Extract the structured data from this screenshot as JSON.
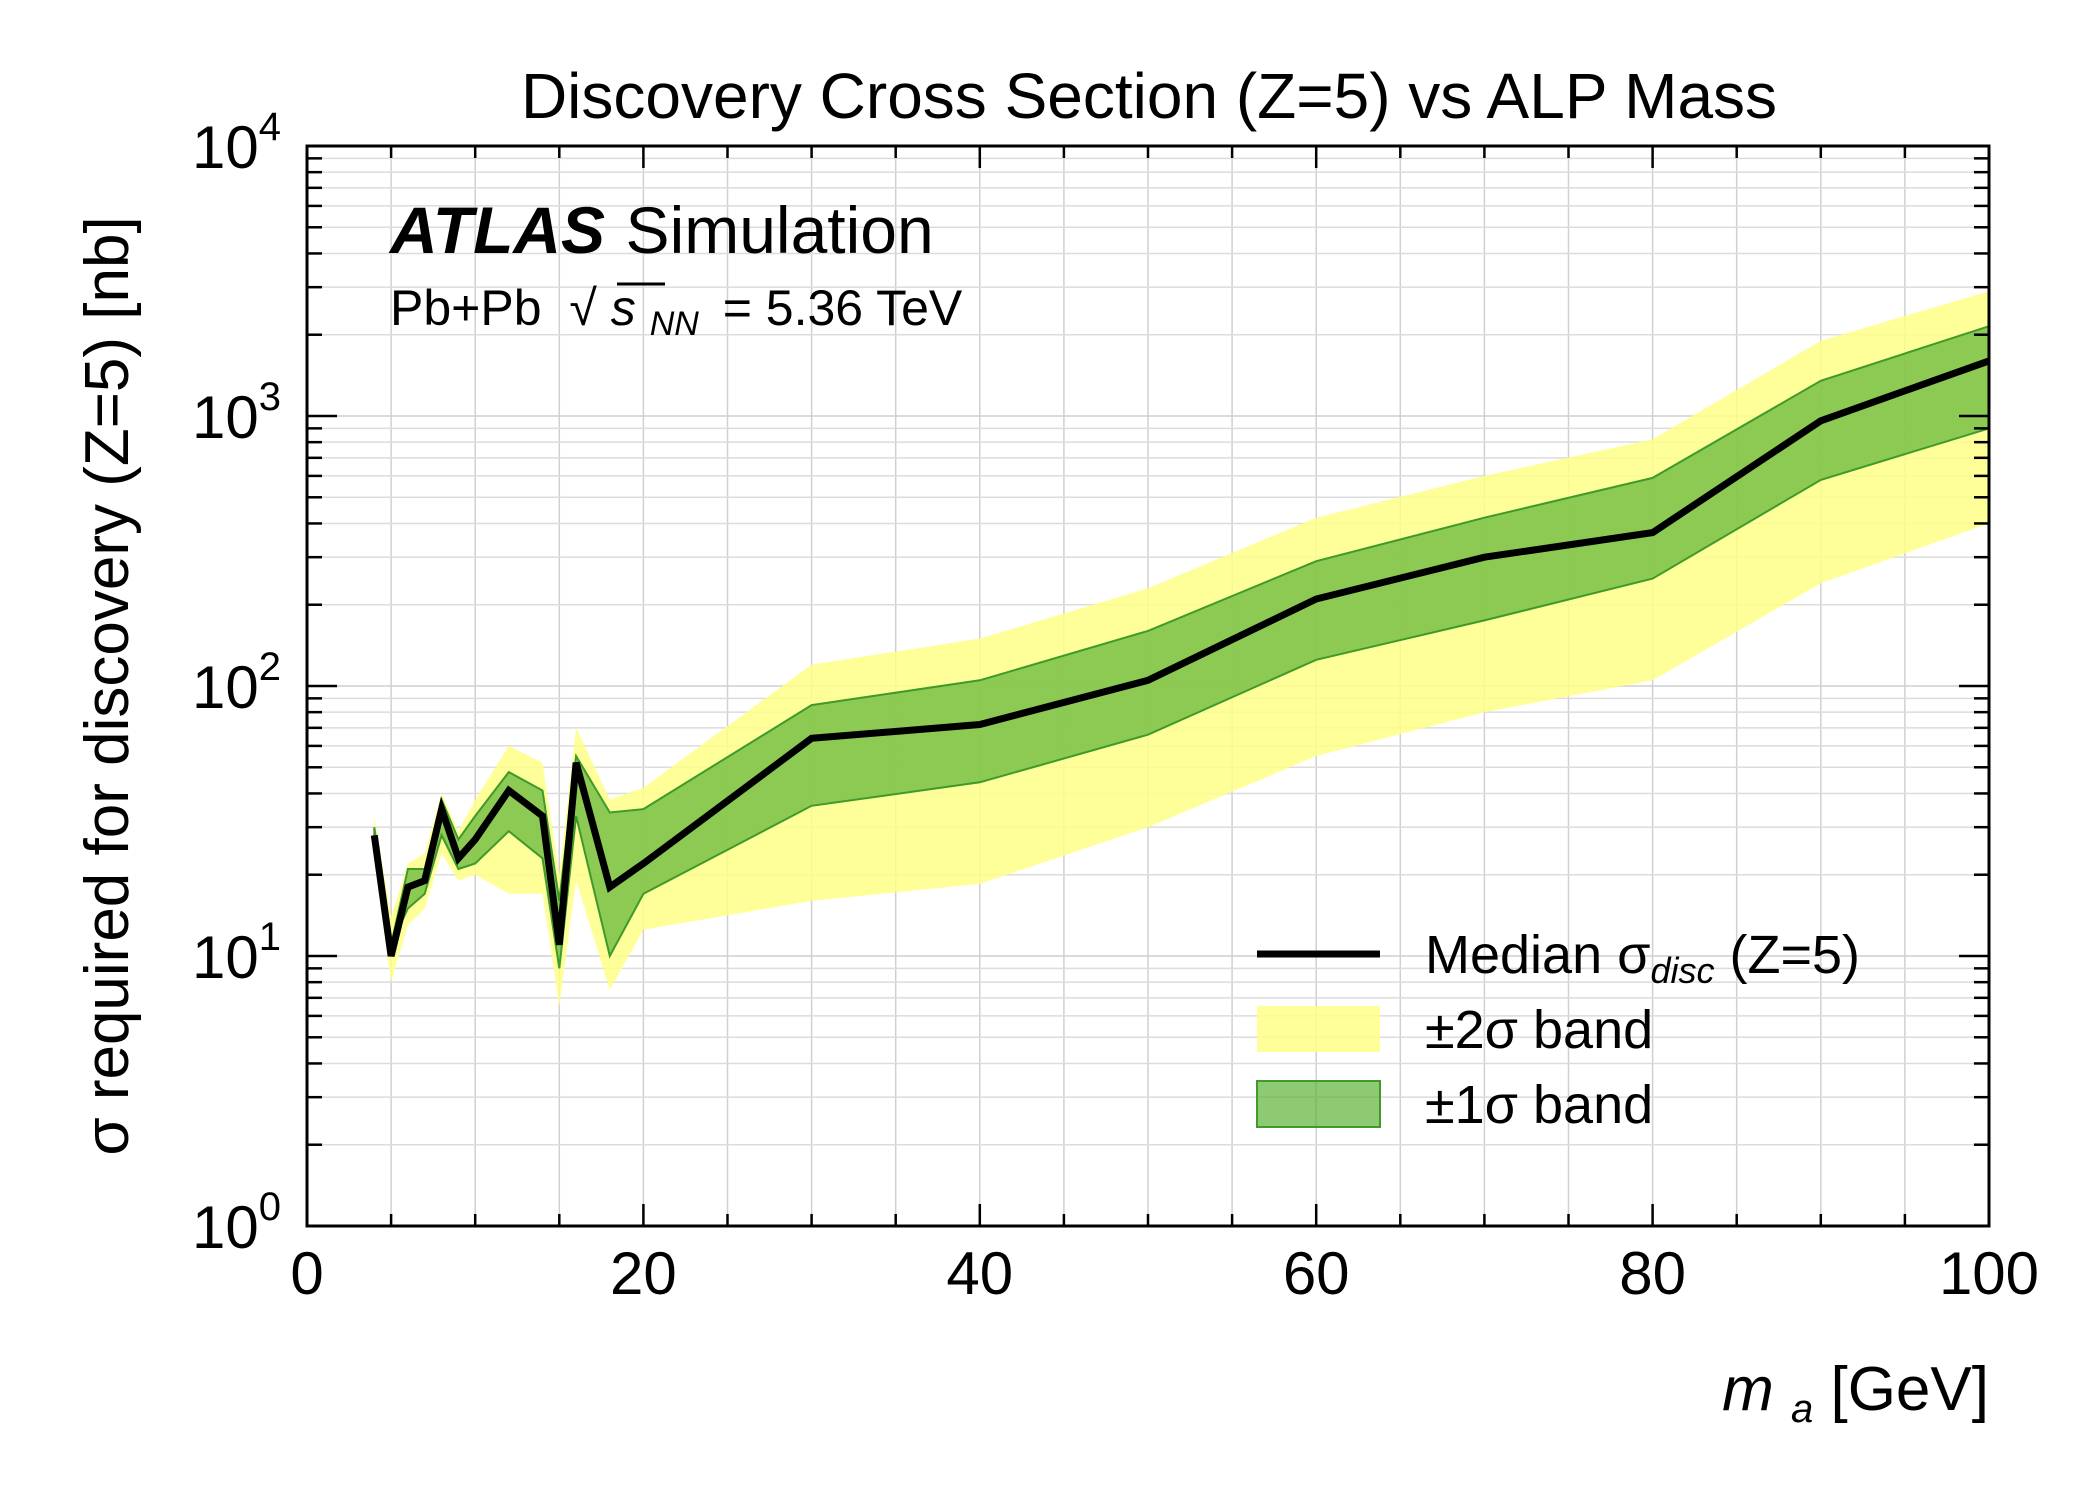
{
  "chart_data": {
    "type": "line",
    "title": "Discovery Cross Section (Z=5) vs ALP Mass",
    "xlabel": {
      "main": "m",
      "sub": "a",
      "unit": " [GeV]"
    },
    "ylabel": "σ required for discovery (Z=5) [nb]",
    "yscale": "log",
    "xlim": [
      0,
      100
    ],
    "ylim": [
      1,
      10000
    ],
    "grid": true,
    "legend_position": "bottom-right",
    "xticks": [
      "0",
      "20",
      "40",
      "60",
      "80",
      "100"
    ],
    "yticks": [
      {
        "value": 1,
        "base": "10",
        "exp": "0"
      },
      {
        "value": 10,
        "base": "10",
        "exp": "1"
      },
      {
        "value": 100,
        "base": "10",
        "exp": "2"
      },
      {
        "value": 1000,
        "base": "10",
        "exp": "3"
      },
      {
        "value": 10000,
        "base": "10",
        "exp": "4"
      }
    ],
    "experiment": {
      "name": "ATLAS",
      "tag": "Simulation"
    },
    "energy_label": {
      "system": "Pb+Pb",
      "sqrt_symbol": "√",
      "var": "s",
      "sub": "NN",
      "value": "= 5.36 TeV"
    },
    "x": [
      4,
      5,
      6,
      7,
      8,
      9,
      10,
      12,
      14,
      15,
      16,
      18,
      20,
      30,
      40,
      50,
      60,
      70,
      80,
      90,
      100
    ],
    "series": [
      {
        "name": "Median σ_disc (Z=5)",
        "role": "median",
        "color": "#000000",
        "values": [
          28,
          10,
          18,
          19,
          35,
          23,
          27,
          41,
          33,
          11,
          52,
          18,
          22,
          64,
          72,
          105,
          210,
          300,
          370,
          960,
          1600
        ]
      },
      {
        "name": "±1σ band",
        "role": "band1",
        "color": "#5cb335",
        "lower": [
          25,
          11,
          15,
          17,
          28,
          21,
          22,
          29,
          23,
          9,
          33,
          10,
          17,
          36,
          44,
          66,
          125,
          175,
          250,
          580,
          900
        ],
        "upper": [
          30,
          11,
          21,
          21,
          38,
          27,
          33,
          48,
          41,
          16,
          55,
          34,
          35,
          85,
          105,
          160,
          290,
          420,
          590,
          1350,
          2150
        ]
      },
      {
        "name": "±2σ band",
        "role": "band2",
        "color": "#ffff88",
        "lower": [
          23,
          8,
          13,
          15,
          24,
          19,
          20,
          17,
          17,
          6.5,
          19,
          7.5,
          12.5,
          16,
          18.5,
          30,
          55,
          80,
          105,
          240,
          400
        ],
        "upper": [
          33,
          14,
          22,
          24,
          40,
          29,
          38,
          60,
          52,
          20,
          70,
          38,
          42,
          120,
          150,
          230,
          420,
          600,
          820,
          1900,
          2900
        ]
      }
    ],
    "legend": [
      {
        "label_pre": "Median σ",
        "label_sub": "disc",
        "label_post": " (Z=5)"
      },
      {
        "label": "±2σ band"
      },
      {
        "label": "±1σ band"
      }
    ]
  }
}
